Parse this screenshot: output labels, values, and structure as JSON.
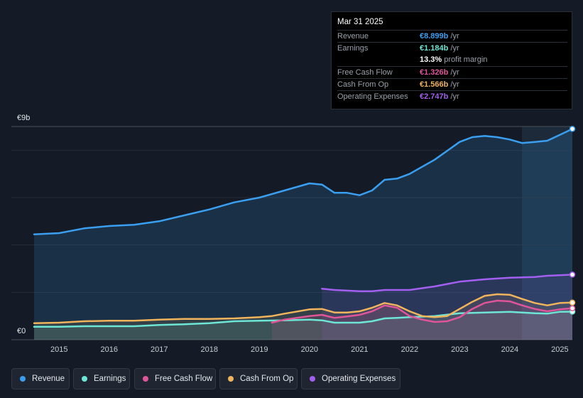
{
  "tooltip": {
    "date": "Mar 31 2025",
    "rows": [
      {
        "label": "Revenue",
        "value": "€8.899b",
        "unit": "/yr",
        "color": "#3a9ff0"
      },
      {
        "label": "Earnings",
        "value": "€1.184b",
        "unit": "/yr",
        "color": "#6ee6d5"
      },
      {
        "label": "",
        "value": "13.3%",
        "unit": "profit margin",
        "color": "#ffffff"
      },
      {
        "label": "Free Cash Flow",
        "value": "€1.326b",
        "unit": "/yr",
        "color": "#e0559a"
      },
      {
        "label": "Cash From Op",
        "value": "€1.566b",
        "unit": "/yr",
        "color": "#f0b45c"
      },
      {
        "label": "Operating Expenses",
        "value": "€2.747b",
        "unit": "/yr",
        "color": "#a35ff0"
      }
    ]
  },
  "legend": [
    {
      "label": "Revenue",
      "color": "#3a9ff0"
    },
    {
      "label": "Earnings",
      "color": "#6ee6d5"
    },
    {
      "label": "Free Cash Flow",
      "color": "#e0559a"
    },
    {
      "label": "Cash From Op",
      "color": "#f0b45c"
    },
    {
      "label": "Operating Expenses",
      "color": "#a35ff0"
    }
  ],
  "chart_data": {
    "type": "line",
    "title": "",
    "y_top_label": "€9b",
    "y_bottom_label": "€0",
    "ylim": [
      0,
      9
    ],
    "xlim": [
      2014.5,
      2025.25
    ],
    "x_ticks": [
      "2015",
      "2016",
      "2017",
      "2018",
      "2019",
      "2020",
      "2021",
      "2022",
      "2023",
      "2024",
      "2025"
    ],
    "x_tick_values": [
      2015,
      2016,
      2017,
      2018,
      2019,
      2020,
      2021,
      2022,
      2023,
      2024,
      2025
    ],
    "forecast_start": 2024.25,
    "series": [
      {
        "name": "Revenue",
        "color": "#3a9ff0",
        "points": [
          [
            2014.5,
            4.45
          ],
          [
            2015,
            4.5
          ],
          [
            2015.5,
            4.7
          ],
          [
            2016,
            4.8
          ],
          [
            2016.5,
            4.85
          ],
          [
            2017,
            5.0
          ],
          [
            2017.5,
            5.25
          ],
          [
            2018,
            5.5
          ],
          [
            2018.5,
            5.8
          ],
          [
            2019,
            6.0
          ],
          [
            2019.5,
            6.3
          ],
          [
            2020,
            6.6
          ],
          [
            2020.25,
            6.55
          ],
          [
            2020.5,
            6.2
          ],
          [
            2020.75,
            6.2
          ],
          [
            2021,
            6.1
          ],
          [
            2021.25,
            6.3
          ],
          [
            2021.5,
            6.75
          ],
          [
            2021.75,
            6.8
          ],
          [
            2022,
            7.0
          ],
          [
            2022.5,
            7.6
          ],
          [
            2023,
            8.35
          ],
          [
            2023.25,
            8.55
          ],
          [
            2023.5,
            8.6
          ],
          [
            2023.75,
            8.55
          ],
          [
            2024,
            8.45
          ],
          [
            2024.25,
            8.3
          ],
          [
            2024.5,
            8.35
          ],
          [
            2024.75,
            8.4
          ],
          [
            2025,
            8.65
          ],
          [
            2025.25,
            8.899
          ]
        ]
      },
      {
        "name": "Earnings",
        "color": "#6ee6d5",
        "points": [
          [
            2014.5,
            0.55
          ],
          [
            2015,
            0.55
          ],
          [
            2015.5,
            0.57
          ],
          [
            2016,
            0.57
          ],
          [
            2016.5,
            0.57
          ],
          [
            2017,
            0.62
          ],
          [
            2017.5,
            0.65
          ],
          [
            2018,
            0.7
          ],
          [
            2018.5,
            0.78
          ],
          [
            2019,
            0.8
          ],
          [
            2019.5,
            0.82
          ],
          [
            2020,
            0.85
          ],
          [
            2020.25,
            0.82
          ],
          [
            2020.5,
            0.72
          ],
          [
            2020.75,
            0.72
          ],
          [
            2021,
            0.72
          ],
          [
            2021.25,
            0.78
          ],
          [
            2021.5,
            0.9
          ],
          [
            2021.75,
            0.92
          ],
          [
            2022,
            0.95
          ],
          [
            2022.5,
            1.0
          ],
          [
            2023,
            1.12
          ],
          [
            2023.5,
            1.15
          ],
          [
            2024,
            1.18
          ],
          [
            2024.5,
            1.12
          ],
          [
            2024.75,
            1.1
          ],
          [
            2025,
            1.18
          ],
          [
            2025.25,
            1.184
          ]
        ]
      },
      {
        "name": "Free Cash Flow",
        "color": "#e0559a",
        "points": [
          [
            2019.25,
            0.72
          ],
          [
            2019.5,
            0.85
          ],
          [
            2020,
            1.0
          ],
          [
            2020.25,
            1.05
          ],
          [
            2020.5,
            0.92
          ],
          [
            2020.75,
            0.98
          ],
          [
            2021,
            1.05
          ],
          [
            2021.25,
            1.2
          ],
          [
            2021.5,
            1.45
          ],
          [
            2021.75,
            1.35
          ],
          [
            2022,
            1.0
          ],
          [
            2022.25,
            0.85
          ],
          [
            2022.5,
            0.75
          ],
          [
            2022.75,
            0.78
          ],
          [
            2023,
            0.95
          ],
          [
            2023.25,
            1.3
          ],
          [
            2023.5,
            1.55
          ],
          [
            2023.75,
            1.65
          ],
          [
            2024,
            1.62
          ],
          [
            2024.25,
            1.45
          ],
          [
            2024.5,
            1.3
          ],
          [
            2024.75,
            1.2
          ],
          [
            2025,
            1.28
          ],
          [
            2025.25,
            1.326
          ]
        ]
      },
      {
        "name": "Cash From Op",
        "color": "#f0b45c",
        "points": [
          [
            2014.5,
            0.7
          ],
          [
            2015,
            0.72
          ],
          [
            2015.5,
            0.78
          ],
          [
            2016,
            0.8
          ],
          [
            2016.5,
            0.8
          ],
          [
            2017,
            0.85
          ],
          [
            2017.5,
            0.88
          ],
          [
            2018,
            0.88
          ],
          [
            2018.5,
            0.9
          ],
          [
            2019,
            0.95
          ],
          [
            2019.25,
            1.0
          ],
          [
            2019.5,
            1.1
          ],
          [
            2020,
            1.28
          ],
          [
            2020.25,
            1.3
          ],
          [
            2020.5,
            1.15
          ],
          [
            2020.75,
            1.15
          ],
          [
            2021,
            1.2
          ],
          [
            2021.25,
            1.35
          ],
          [
            2021.5,
            1.55
          ],
          [
            2021.75,
            1.45
          ],
          [
            2022,
            1.2
          ],
          [
            2022.25,
            1.0
          ],
          [
            2022.5,
            0.95
          ],
          [
            2022.75,
            1.0
          ],
          [
            2023,
            1.3
          ],
          [
            2023.25,
            1.6
          ],
          [
            2023.5,
            1.85
          ],
          [
            2023.75,
            1.92
          ],
          [
            2024,
            1.9
          ],
          [
            2024.25,
            1.72
          ],
          [
            2024.5,
            1.55
          ],
          [
            2024.75,
            1.45
          ],
          [
            2025,
            1.55
          ],
          [
            2025.25,
            1.566
          ]
        ]
      },
      {
        "name": "Operating Expenses",
        "color": "#a35ff0",
        "points": [
          [
            2020.25,
            2.15
          ],
          [
            2020.5,
            2.1
          ],
          [
            2021,
            2.05
          ],
          [
            2021.25,
            2.05
          ],
          [
            2021.5,
            2.1
          ],
          [
            2022,
            2.1
          ],
          [
            2022.5,
            2.25
          ],
          [
            2023,
            2.45
          ],
          [
            2023.5,
            2.55
          ],
          [
            2024,
            2.62
          ],
          [
            2024.5,
            2.65
          ],
          [
            2024.75,
            2.7
          ],
          [
            2025,
            2.72
          ],
          [
            2025.25,
            2.747
          ]
        ]
      }
    ]
  }
}
